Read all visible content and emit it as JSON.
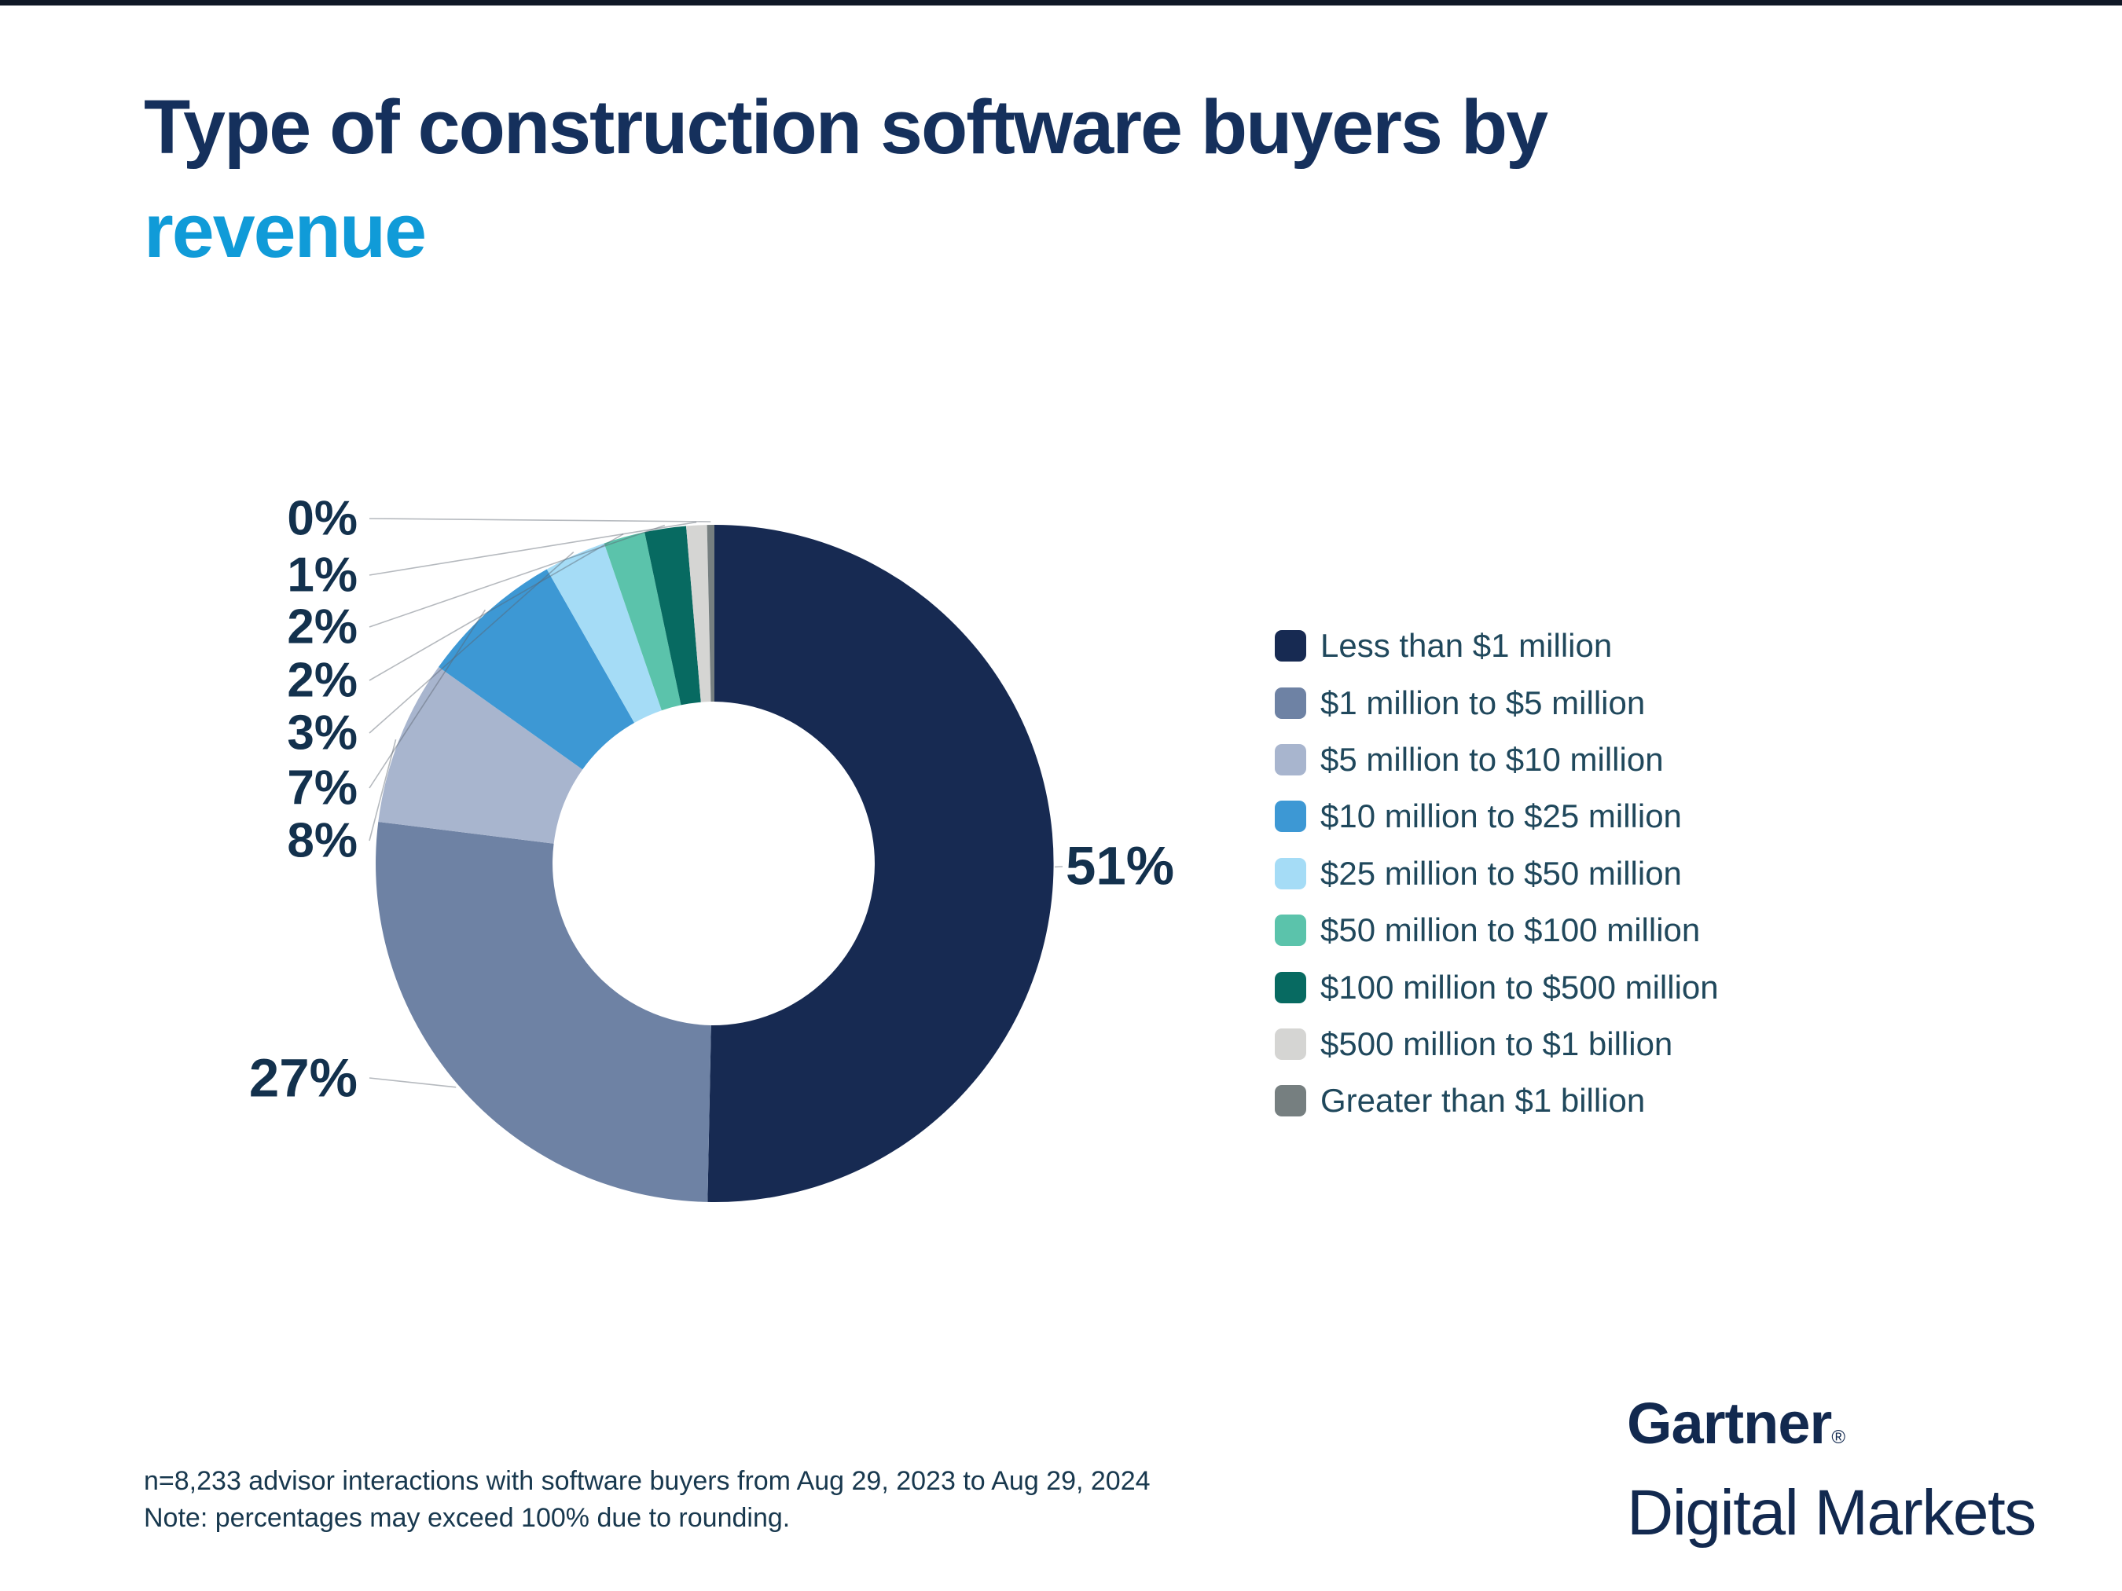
{
  "title": {
    "line1": "Type of construction software buyers by",
    "line2": "revenue"
  },
  "chart_data": {
    "type": "pie",
    "subtype": "donut",
    "title": "Type of construction software buyers by revenue",
    "unit": "%",
    "start_angle": "top",
    "direction": "clockwise",
    "legend_position": "right",
    "segments": [
      {
        "label": "Less than $1 million",
        "value": 51,
        "pct_label": "51%",
        "color": "#172A52"
      },
      {
        "label": "$1 million to $5 million",
        "value": 27,
        "pct_label": "27%",
        "color": "#6E82A4"
      },
      {
        "label": "$5 million to $10 million",
        "value": 8,
        "pct_label": "8%",
        "color": "#A8B5CE"
      },
      {
        "label": "$10 million to $25 million",
        "value": 7,
        "pct_label": "7%",
        "color": "#3D98D4"
      },
      {
        "label": "$25 million to $50 million",
        "value": 3,
        "pct_label": "3%",
        "color": "#A5DCF6"
      },
      {
        "label": "$50 million to $100 million",
        "value": 2,
        "pct_label": "2%",
        "color": "#5BC3AB"
      },
      {
        "label": "$100 million to $500 million",
        "value": 2,
        "pct_label": "2%",
        "color": "#076A61"
      },
      {
        "label": "$500 million to $1 billion",
        "value": 1,
        "pct_label": "1%",
        "color": "#D5D5D3"
      },
      {
        "label": "Greater than $1 billion",
        "value": 0,
        "pct_label": "0%",
        "color": "#767F80"
      }
    ]
  },
  "footer": {
    "line1": "n=8,233 advisor interactions with software buyers from Aug 29, 2023 to Aug 29, 2024",
    "line2": "Note: percentages may exceed 100% due to rounding."
  },
  "branding": {
    "company": "Gartner",
    "registered": "®",
    "division": "Digital Markets"
  },
  "colors": {
    "title_navy": "#15305C",
    "title_accent_blue": "#109BD8",
    "pct_label": "#13314D",
    "legend_text": "#20485C",
    "footer_text": "#18384E",
    "brand_navy": "#12294F",
    "leader_line": "#9AA3AB"
  }
}
